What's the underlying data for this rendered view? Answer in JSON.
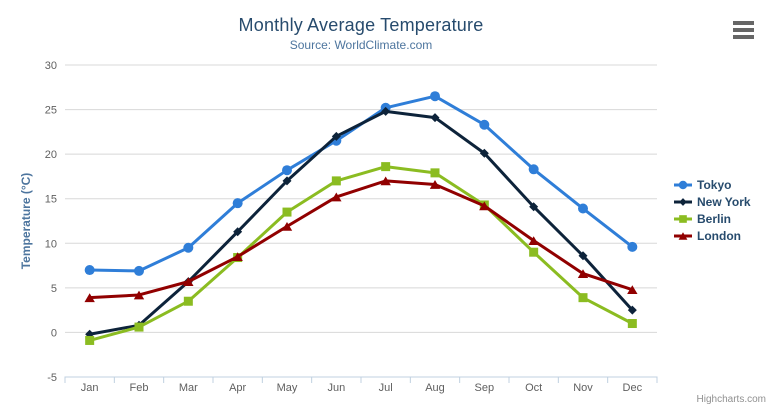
{
  "chart_data": {
    "type": "line",
    "title": "Monthly Average Temperature",
    "subtitle": "Source: WorldClimate.com",
    "xlabel": "",
    "ylabel": "Temperature (°C)",
    "ylim": [
      -5,
      30
    ],
    "yticks": [
      30,
      25,
      20,
      15,
      10,
      5,
      0,
      -5
    ],
    "grid": true,
    "legend_position": "right-middle",
    "categories": [
      "Jan",
      "Feb",
      "Mar",
      "Apr",
      "May",
      "Jun",
      "Jul",
      "Aug",
      "Sep",
      "Oct",
      "Nov",
      "Dec"
    ],
    "series": [
      {
        "name": "Tokyo",
        "color": "#2f7ed8",
        "marker": "circle",
        "values": [
          7.0,
          6.9,
          9.5,
          14.5,
          18.2,
          21.5,
          25.2,
          26.5,
          23.3,
          18.3,
          13.9,
          9.6
        ]
      },
      {
        "name": "New York",
        "color": "#0d233a",
        "marker": "diamond",
        "values": [
          -0.2,
          0.8,
          5.7,
          11.3,
          17.0,
          22.0,
          24.8,
          24.1,
          20.1,
          14.1,
          8.6,
          2.5
        ]
      },
      {
        "name": "Berlin",
        "color": "#8bbc21",
        "marker": "square",
        "values": [
          -0.9,
          0.6,
          3.5,
          8.4,
          13.5,
          17.0,
          18.6,
          17.9,
          14.3,
          9.0,
          3.9,
          1.0
        ]
      },
      {
        "name": "London",
        "color": "#910000",
        "marker": "triangle",
        "values": [
          3.9,
          4.2,
          5.7,
          8.5,
          11.9,
          15.2,
          17.0,
          16.6,
          14.2,
          10.3,
          6.6,
          4.8
        ]
      }
    ],
    "colors": {
      "title": "#274b6d",
      "subtitle": "#4d759e",
      "axis_title": "#4d759e",
      "axis_labels": "#606060",
      "gridline": "#d8d8d8",
      "axis_line": "#c0d0e0",
      "legend_text": "#274b6d",
      "export_icon": "#666666",
      "credits_text": "#909090"
    }
  },
  "export_menu": {
    "icon": "hamburger-menu-icon"
  },
  "credits": {
    "label": "Highcharts.com"
  }
}
